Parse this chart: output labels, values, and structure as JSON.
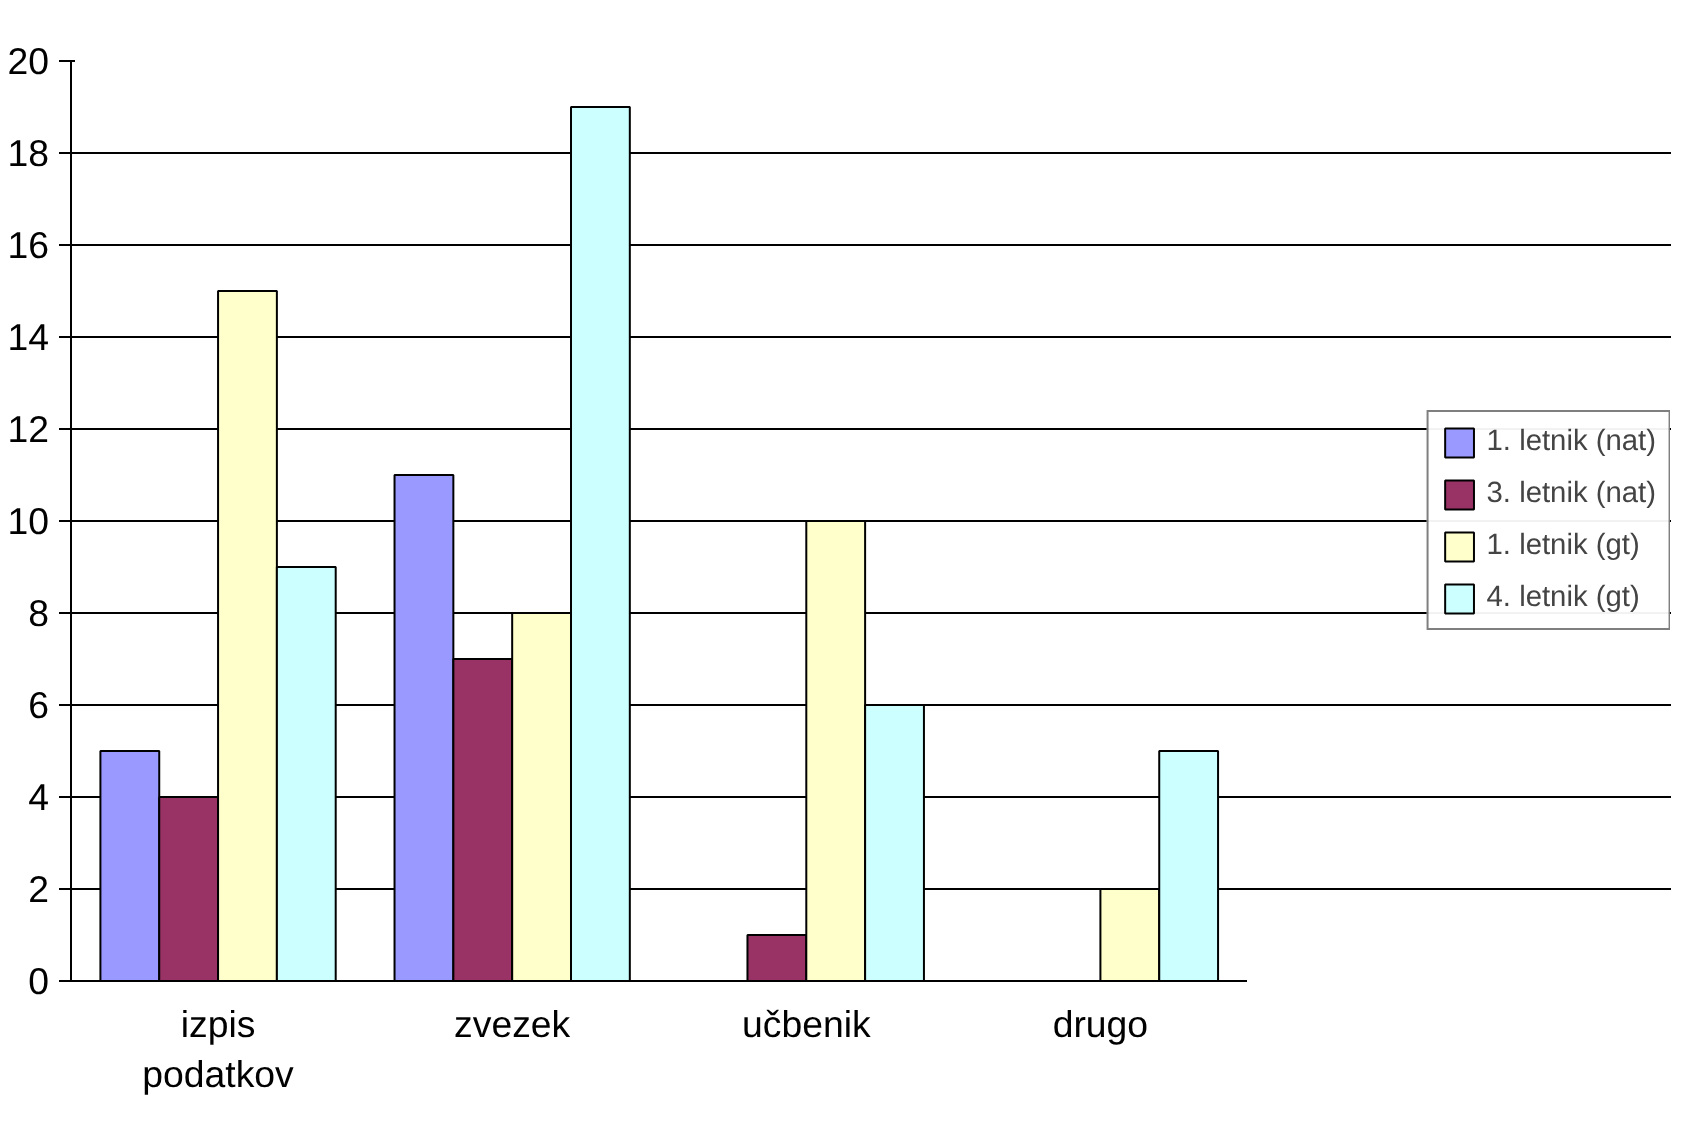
{
  "chart_data": {
    "type": "bar",
    "categories": [
      "izpis podatkov",
      "zvezek",
      "učbenik",
      "drugo"
    ],
    "series": [
      {
        "name": "1. letnik (nat)",
        "color": "#9999ff",
        "values": [
          5,
          11,
          0,
          0
        ]
      },
      {
        "name": "3. letnik (nat)",
        "color": "#993366",
        "values": [
          4,
          7,
          1,
          0
        ]
      },
      {
        "name": "1. letnik (gt)",
        "color": "#ffffcc",
        "values": [
          15,
          8,
          10,
          2
        ]
      },
      {
        "name": "4. letnik (gt)",
        "color": "#ccffff",
        "values": [
          9,
          19,
          6,
          5
        ]
      }
    ],
    "ylim": [
      0,
      20
    ],
    "yticks": [
      0,
      2,
      4,
      6,
      8,
      10,
      12,
      14,
      16,
      18,
      20
    ],
    "grid": "y",
    "legend": "right"
  }
}
